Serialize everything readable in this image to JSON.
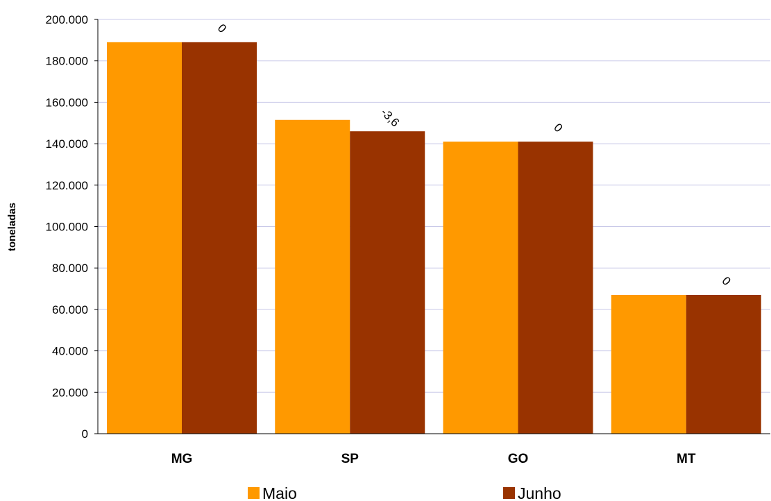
{
  "chart_data": {
    "type": "bar",
    "categories": [
      "MG",
      "SP",
      "GO",
      "MT"
    ],
    "series": [
      {
        "name": "Maio",
        "values": [
          189000,
          151500,
          141000,
          67000
        ],
        "color": "#FF9900"
      },
      {
        "name": "Junho",
        "values": [
          189000,
          146000,
          141000,
          67000
        ],
        "color": "#993300"
      }
    ],
    "data_labels": [
      "0",
      "-3,6",
      "0",
      "0"
    ],
    "title": "",
    "xlabel": "",
    "ylabel": "toneladas",
    "ylim": [
      0,
      200000
    ],
    "yticks": [
      {
        "value": 0,
        "label": "0"
      },
      {
        "value": 20000,
        "label": "20.000"
      },
      {
        "value": 40000,
        "label": "40.000"
      },
      {
        "value": 60000,
        "label": "60.000"
      },
      {
        "value": 80000,
        "label": "80.000"
      },
      {
        "value": 100000,
        "label": "100.000"
      },
      {
        "value": 120000,
        "label": "120.000"
      },
      {
        "value": 140000,
        "label": "140.000"
      },
      {
        "value": 160000,
        "label": "160.000"
      },
      {
        "value": 180000,
        "label": "180.000"
      },
      {
        "value": 200000,
        "label": "200.000"
      }
    ],
    "grid": true,
    "grid_color": "#C8C8E8",
    "legend_position": "bottom"
  }
}
